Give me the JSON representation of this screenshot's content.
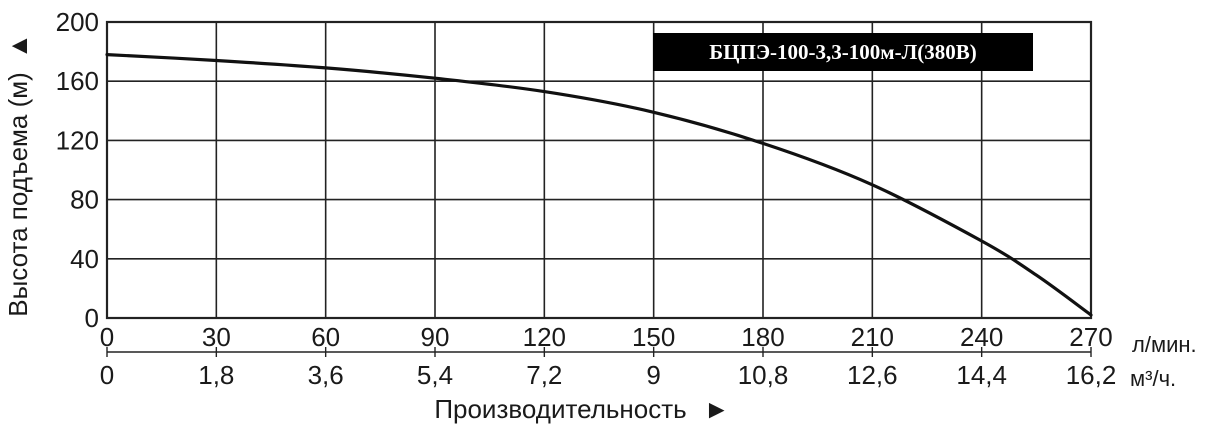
{
  "chart_data": {
    "type": "line",
    "title": "",
    "model_label": "БЦПЭ-100-3,3-100м-Л(380В)",
    "ylabel": "Высота подъема (м)",
    "ylabel_arrow": "▲",
    "xlabel": "Производительность",
    "xlabel_arrow": "►",
    "ylim": [
      0,
      200
    ],
    "xlim": [
      0,
      270
    ],
    "yticks": [
      "0",
      "40",
      "80",
      "120",
      "160",
      "200"
    ],
    "x_primary_ticks": [
      "0",
      "30",
      "60",
      "90",
      "120",
      "150",
      "180",
      "210",
      "240",
      "270"
    ],
    "x_primary_unit": "л/мин.",
    "x_secondary_ticks": [
      "0",
      "1,8",
      "3,6",
      "5,4",
      "7,2",
      "9",
      "10,8",
      "12,6",
      "14,4",
      "16,2"
    ],
    "x_secondary_unit": "м³/ч.",
    "grid": true,
    "line_color": "#111111",
    "series": [
      {
        "x": [
          0,
          30,
          60,
          90,
          120,
          150,
          180,
          210,
          240,
          255,
          270
        ],
        "y": [
          178,
          174,
          169,
          162,
          153,
          139,
          118,
          90,
          52,
          29,
          2
        ]
      }
    ]
  }
}
